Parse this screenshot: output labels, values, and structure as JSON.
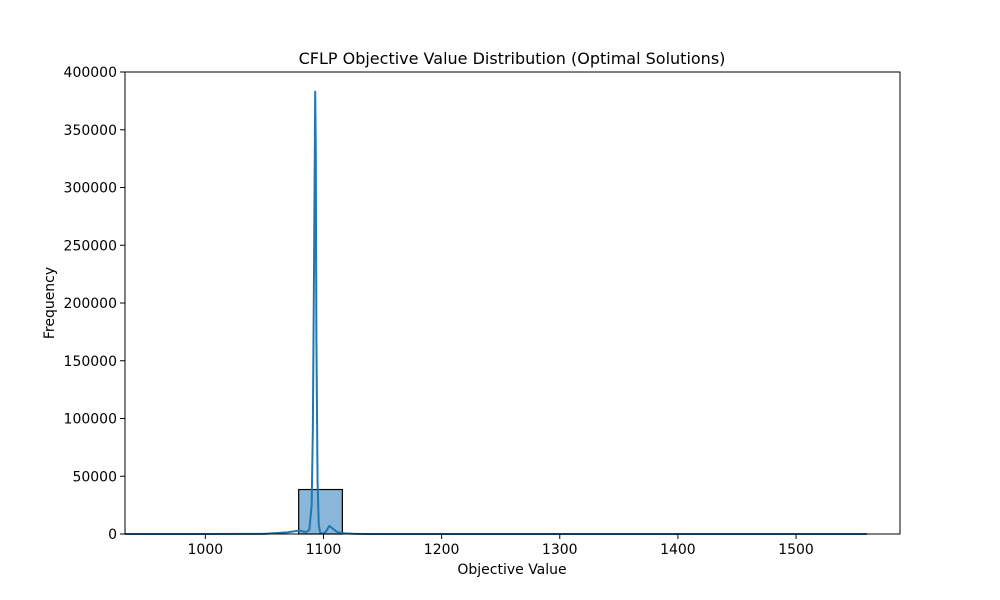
{
  "chart_data": {
    "type": "histogram",
    "title": "CFLP Objective Value Distribution (Optimal Solutions)",
    "xlabel": "Objective Value",
    "ylabel": "Frequency",
    "xlim": [
      932,
      1588
    ],
    "ylim": [
      0,
      400000
    ],
    "x_ticks": [
      1000,
      1100,
      1200,
      1300,
      1400,
      1500
    ],
    "y_ticks": [
      0,
      50000,
      100000,
      150000,
      200000,
      250000,
      300000,
      350000,
      400000
    ],
    "bin_edges": [
      932,
      968,
      1005,
      1042,
      1079,
      1116,
      1153,
      1190,
      1227,
      1264,
      1301,
      1338,
      1375,
      1412,
      1449,
      1486,
      1523,
      1560
    ],
    "bin_counts": [
      0,
      0,
      0,
      0,
      38500,
      0,
      0,
      0,
      0,
      0,
      0,
      0,
      0,
      0,
      0,
      0,
      0
    ],
    "kde": {
      "x": [
        932,
        1000,
        1050,
        1070,
        1080,
        1085,
        1088,
        1090,
        1091,
        1092,
        1093,
        1093.5,
        1094,
        1095,
        1096,
        1097,
        1098,
        1100,
        1102,
        1105,
        1108,
        1112,
        1118,
        1125,
        1135,
        1200,
        1300,
        1400,
        1560
      ],
      "y": [
        0,
        0,
        100,
        1500,
        3000,
        1500,
        3500,
        25000,
        90000,
        230000,
        383000,
        330000,
        170000,
        45000,
        8000,
        2000,
        500,
        300,
        2000,
        7000,
        4500,
        1500,
        500,
        200,
        0,
        0,
        0,
        0,
        0
      ]
    },
    "colors": {
      "bar_fill": "#8ab7d9",
      "bar_edge": "#000000",
      "kde_line": "#1f77b4"
    },
    "grid": false,
    "legend": "none"
  }
}
